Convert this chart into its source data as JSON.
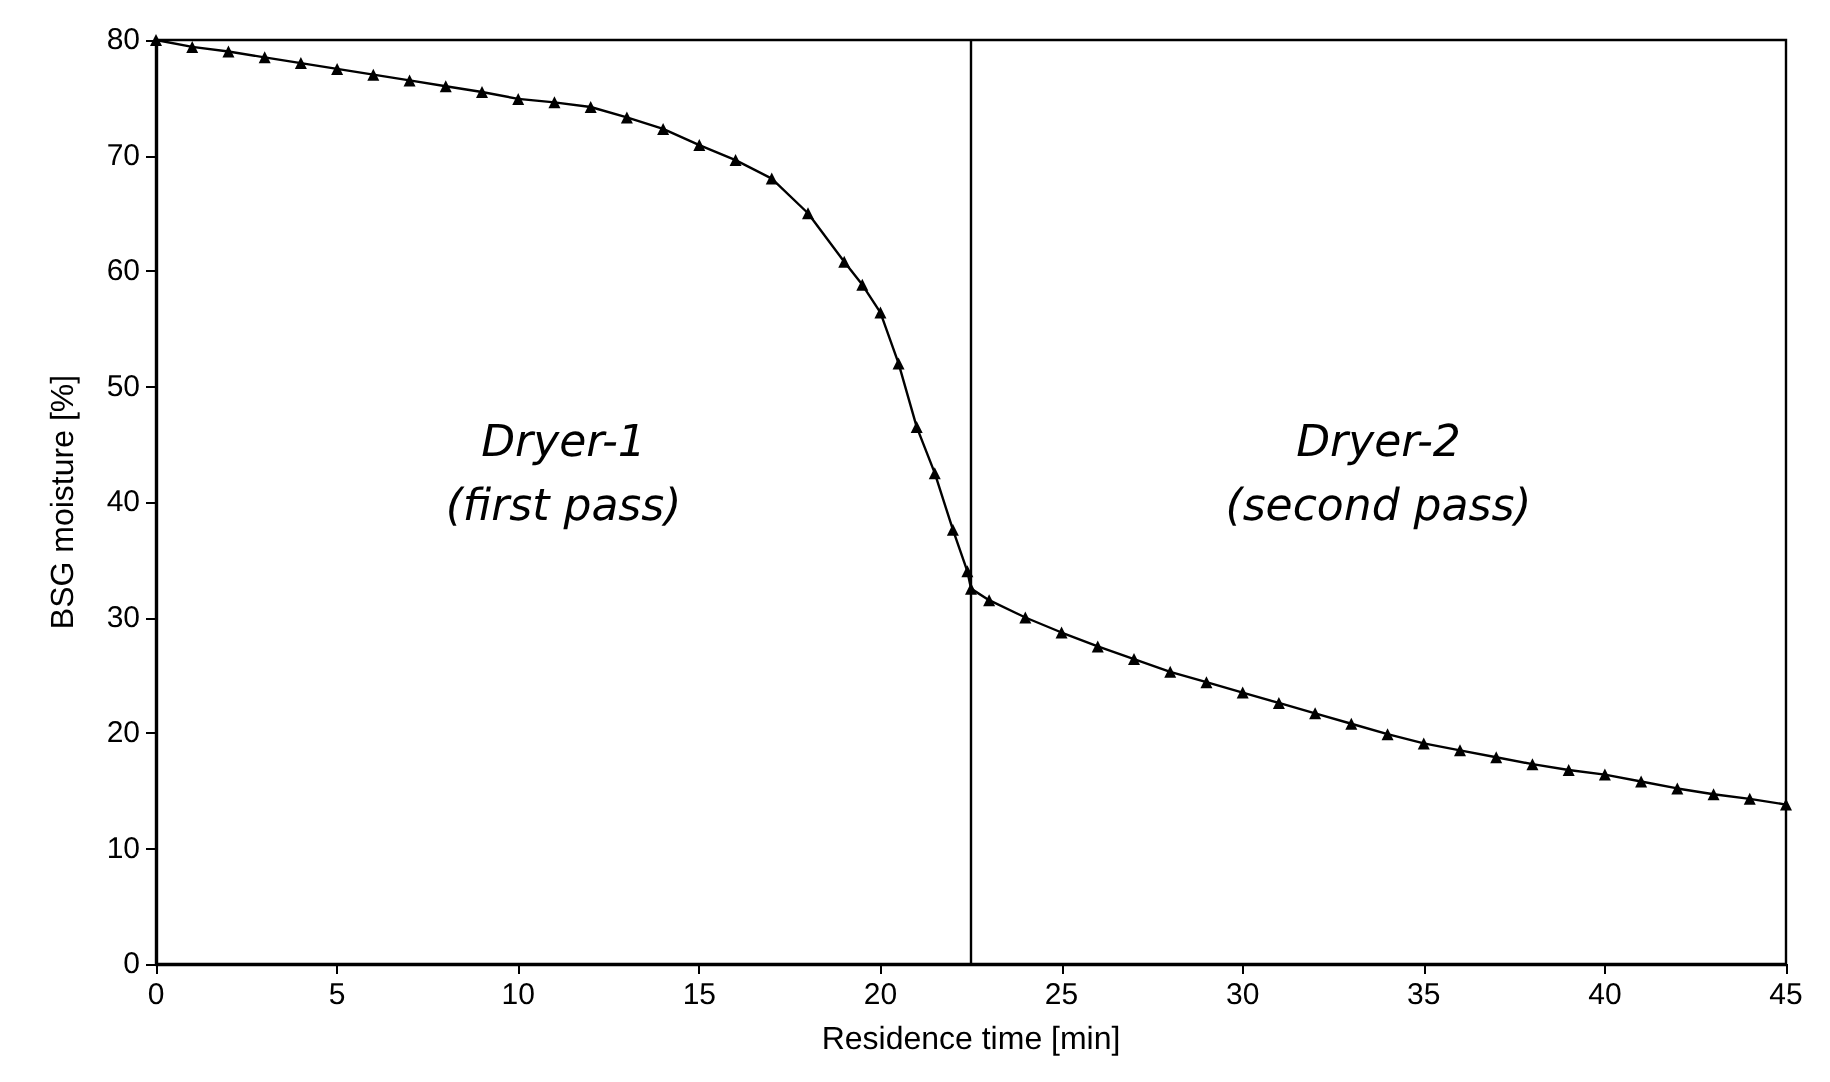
{
  "chart_data": {
    "type": "line",
    "xlabel": "Residence time [min]",
    "ylabel": "BSG moisture [%]",
    "xlim": [
      0,
      45
    ],
    "xticks": [
      0,
      5,
      10,
      15,
      20,
      25,
      30,
      35,
      40,
      45
    ],
    "ylim": [
      0,
      80
    ],
    "yticks": [
      0,
      10,
      20,
      30,
      40,
      50,
      60,
      70,
      80
    ],
    "x": [
      0,
      1,
      2,
      3,
      4,
      5,
      6,
      7,
      8,
      9,
      10,
      11,
      12,
      13,
      14,
      15,
      16,
      17,
      18,
      19,
      19.5,
      20,
      20.5,
      21,
      21.5,
      22,
      22.4,
      22.5,
      23,
      24,
      25,
      26,
      27,
      28,
      29,
      30,
      31,
      32,
      33,
      34,
      35,
      36,
      37,
      38,
      39,
      40,
      41,
      42,
      43,
      44,
      45
    ],
    "series": [
      {
        "color": "#000000",
        "values": [
          80,
          79.4,
          79,
          78.5,
          78,
          77.5,
          77,
          76.5,
          76,
          75.5,
          74.9,
          74.6,
          74.2,
          73.3,
          72.3,
          70.9,
          69.6,
          68,
          65,
          60.8,
          58.8,
          56.4,
          52,
          46.5,
          42.5,
          37.6,
          34,
          32.5,
          31.5,
          30,
          28.7,
          27.5,
          26.4,
          25.3,
          24.4,
          23.5,
          22.6,
          21.7,
          20.8,
          19.9,
          19.1,
          18.5,
          17.9,
          17.3,
          16.8,
          16.4,
          15.8,
          15.2,
          14.7,
          14.3,
          13.8
        ]
      }
    ],
    "marker": "triangle",
    "line_style": "solid",
    "grid": false,
    "ref_lines": [
      {
        "axis": "x",
        "value": 22.5,
        "color": "#000000"
      }
    ],
    "annotations": [
      "Dryer-1\n(first pass)",
      "Dryer-2\n(second pass)"
    ]
  }
}
